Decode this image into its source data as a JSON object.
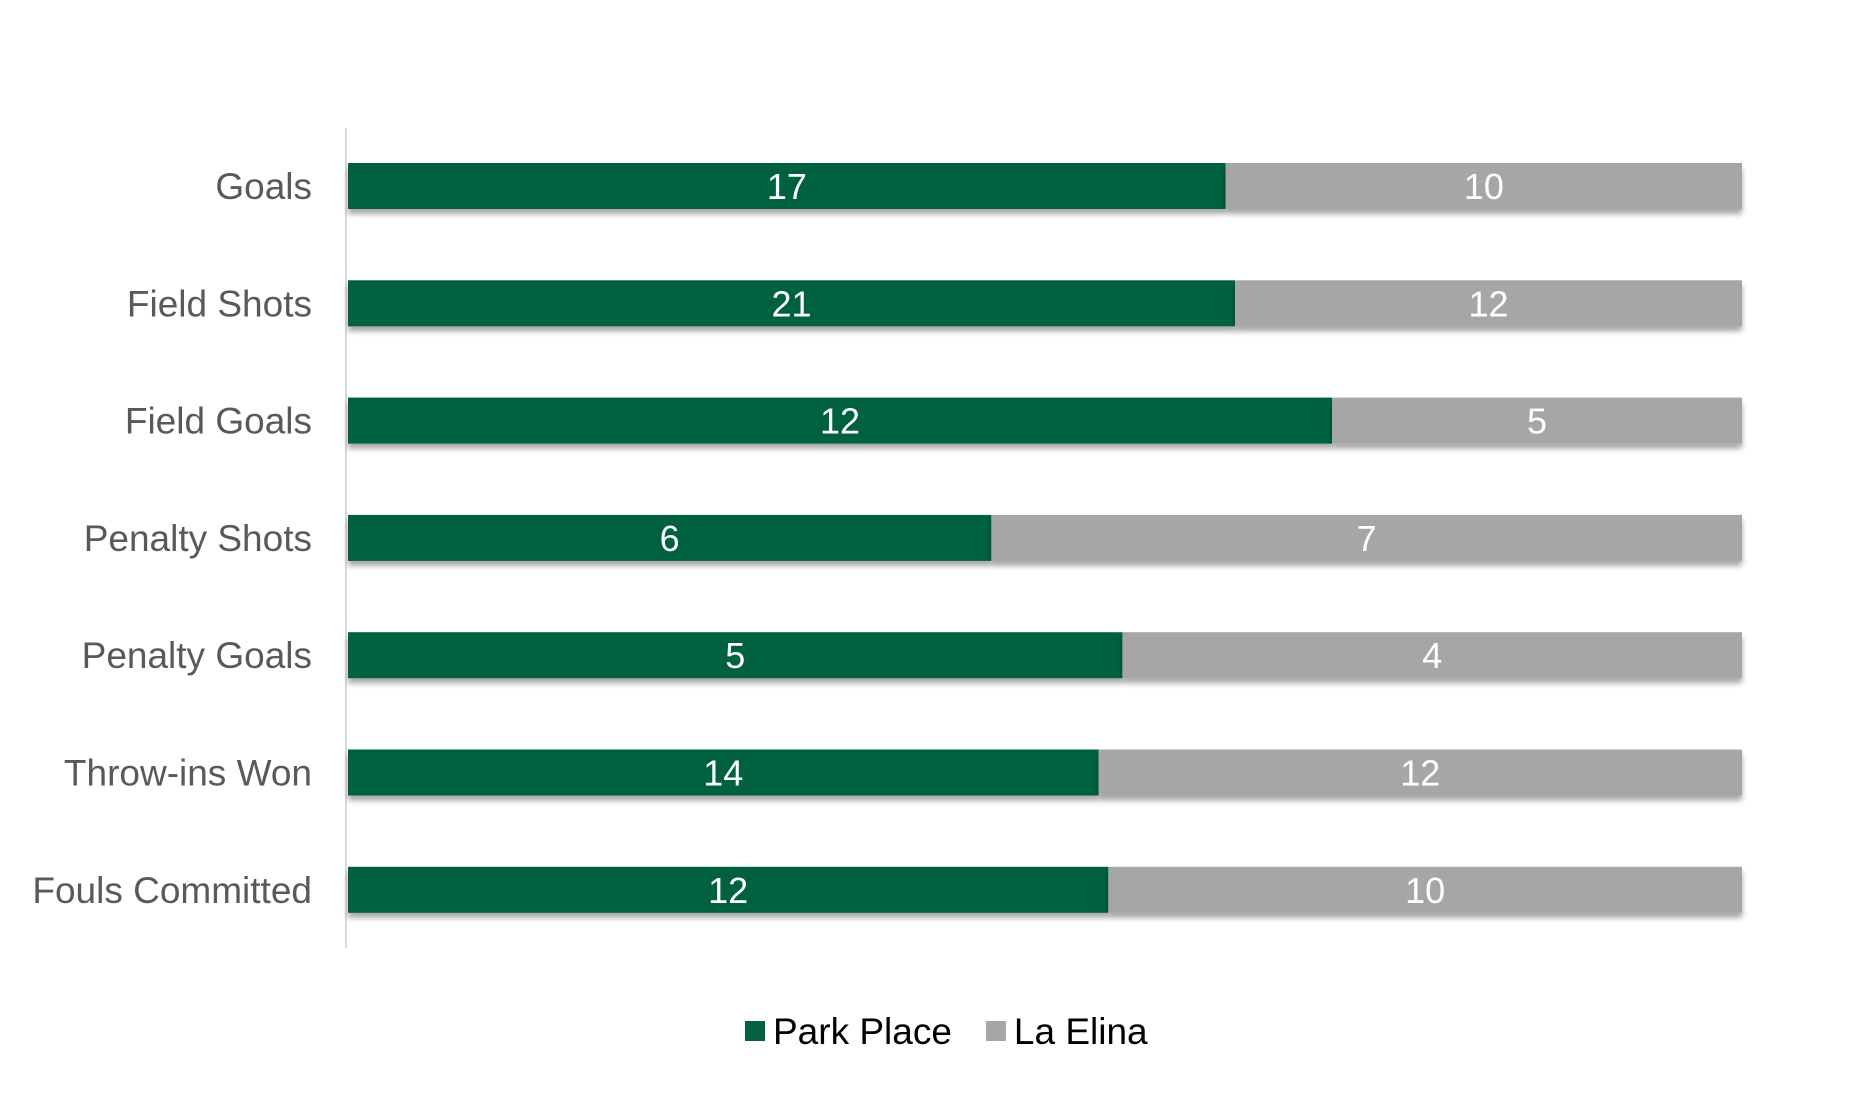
{
  "chart_data": {
    "type": "bar",
    "orientation": "horizontal",
    "stacked": "percent",
    "title": "",
    "xlabel": "",
    "ylabel": "",
    "categories": [
      "Goals",
      "Field Shots",
      "Field Goals",
      "Penalty Shots",
      "Penalty Goals",
      "Throw-ins Won",
      "Fouls Committed"
    ],
    "series": [
      {
        "name": "Park Place",
        "values": [
          17,
          21,
          12,
          6,
          5,
          14,
          12
        ],
        "color": "#066043"
      },
      {
        "name": "La Elina",
        "values": [
          10,
          12,
          5,
          7,
          4,
          12,
          10
        ],
        "color": "#a6a6a6"
      }
    ],
    "data_labels": true,
    "grid": false,
    "legend": "bottom-center"
  }
}
